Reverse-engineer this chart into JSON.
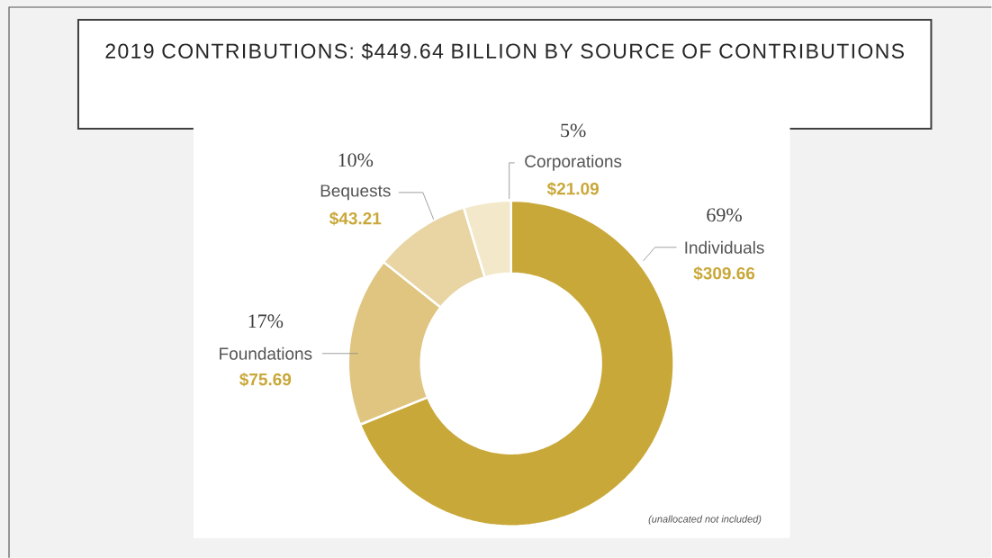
{
  "chart_data": {
    "type": "donut",
    "title": "2019 CONTRIBUTIONS: $449.64 BILLION BY SOURCE OF CONTRIBUTIONS",
    "categories": [
      "Individuals",
      "Foundations",
      "Bequests",
      "Corporations"
    ],
    "values": [
      309.66,
      75.69,
      43.21,
      21.09
    ],
    "value_labels": [
      "$309.66",
      "$75.69",
      "$43.21",
      "$21.09"
    ],
    "colors": [
      "#c9a83a",
      "#dfc580",
      "#e8d5a3",
      "#f3e8c9"
    ],
    "annotations": [
      {
        "text": "69%",
        "x": "Individuals"
      },
      {
        "text": "17%",
        "x": "Foundations"
      },
      {
        "text": "10%",
        "x": "Bequests"
      },
      {
        "text": "5%",
        "x": "Corporations"
      },
      "(unallocated not included)"
    ]
  }
}
